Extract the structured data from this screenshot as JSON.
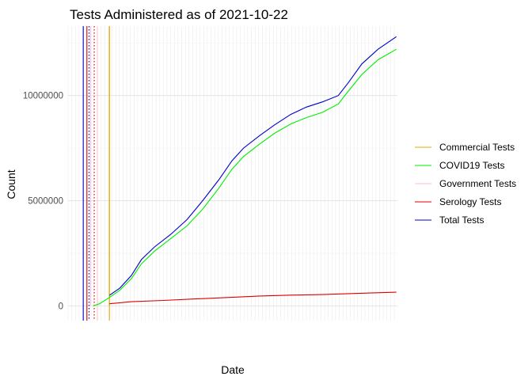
{
  "chart_data": {
    "type": "line",
    "title": "Tests Administered as of 2021-10-22",
    "xlabel": "Date",
    "ylabel": "Count",
    "x_range": [
      "2020-02-01",
      "2021-10-22"
    ],
    "ylim": [
      -700000,
      13300000
    ],
    "y_ticks": [
      0,
      5000000,
      10000000
    ],
    "y_tick_labels": [
      "0",
      "5000000",
      "10000000"
    ],
    "grid": true,
    "legend_position": "right",
    "series": [
      {
        "name": "Commercial Tests",
        "color": "#e6ab02",
        "x": [
          "2020-04-20",
          "2020-04-20"
        ],
        "y": [
          0,
          13300000
        ]
      },
      {
        "name": "COVID19 Tests",
        "color": "#00ee00",
        "x": [
          "2020-03-20",
          "2020-04-01",
          "2020-04-20",
          "2020-05-10",
          "2020-06-01",
          "2020-06-20",
          "2020-07-15",
          "2020-08-15",
          "2020-09-15",
          "2020-10-15",
          "2020-11-15",
          "2020-12-10",
          "2021-01-01",
          "2021-02-01",
          "2021-03-01",
          "2021-04-01",
          "2021-05-01",
          "2021-06-01",
          "2021-07-01",
          "2021-07-20",
          "2021-08-15",
          "2021-09-15",
          "2021-10-20"
        ],
        "y": [
          0,
          100000,
          400000,
          750000,
          1300000,
          2000000,
          2600000,
          3200000,
          3800000,
          4600000,
          5600000,
          6500000,
          7100000,
          7700000,
          8200000,
          8650000,
          8950000,
          9200000,
          9600000,
          10200000,
          11000000,
          11700000,
          12200000
        ]
      },
      {
        "name": "Government Tests",
        "color": "#ffc0cb",
        "x": [
          "2020-03-15",
          "2020-03-15"
        ],
        "y": [
          0,
          13300000
        ]
      },
      {
        "name": "Serology Tests",
        "color": "#dd0000",
        "x": [
          "2020-04-20",
          "2020-06-01",
          "2020-08-01",
          "2020-10-01",
          "2020-12-01",
          "2021-02-01",
          "2021-04-01",
          "2021-06-01",
          "2021-08-01",
          "2021-10-20"
        ],
        "y": [
          100000,
          200000,
          260000,
          330000,
          400000,
          470000,
          510000,
          540000,
          590000,
          650000
        ]
      },
      {
        "name": "Total Tests",
        "color": "#0000cc",
        "x": [
          "2020-04-20",
          "2020-05-10",
          "2020-06-01",
          "2020-06-20",
          "2020-07-15",
          "2020-08-15",
          "2020-09-15",
          "2020-10-15",
          "2020-11-15",
          "2020-12-10",
          "2021-01-01",
          "2021-02-01",
          "2021-03-01",
          "2021-04-01",
          "2021-05-01",
          "2021-06-01",
          "2021-07-01",
          "2021-07-20",
          "2021-08-15",
          "2021-09-15",
          "2021-10-20"
        ],
        "y": [
          500000,
          850000,
          1450000,
          2200000,
          2800000,
          3400000,
          4100000,
          5000000,
          6000000,
          6900000,
          7500000,
          8100000,
          8600000,
          9100000,
          9450000,
          9700000,
          10000000,
          10600000,
          11500000,
          12200000,
          12800000
        ]
      }
    ],
    "reference_lines": [
      {
        "x": "2020-03-01",
        "color": "#0000cc",
        "style": "solid"
      },
      {
        "x": "2020-03-08",
        "color": "#dd0000",
        "style": "solid"
      },
      {
        "x": "2020-03-12",
        "color": "#0000cc",
        "style": "dotted"
      },
      {
        "x": "2020-03-22",
        "color": "#dd0000",
        "style": "dotted"
      },
      {
        "x": "2020-03-28",
        "color": "#ffc0cb",
        "style": "solid"
      },
      {
        "x": "2020-04-20",
        "color": "#e6ab02",
        "style": "solid"
      }
    ]
  }
}
